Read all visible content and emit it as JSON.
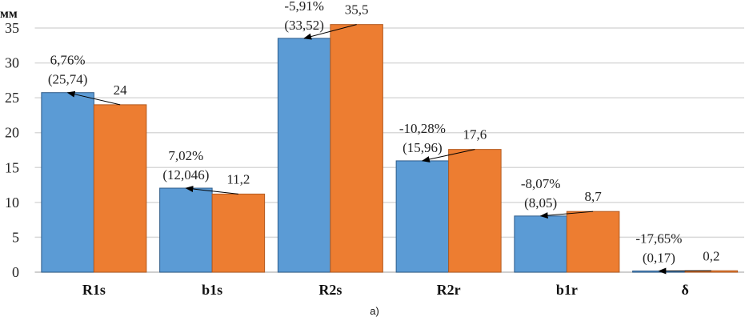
{
  "chart_data": {
    "type": "bar",
    "ylabel": "мм",
    "caption": "a)",
    "categories": [
      "R1s",
      "b1s",
      "R2s",
      "R2r",
      "b1r",
      "δ"
    ],
    "ylim": [
      0,
      35
    ],
    "yticks": [
      0,
      5,
      10,
      15,
      20,
      25,
      30,
      35
    ],
    "grid": true,
    "series": [
      {
        "values": [
          25.74,
          12.046,
          33.52,
          15.96,
          8.05,
          0.17
        ],
        "labels": [
          "(25,74)",
          "(12,046)",
          "(33,52)",
          "(15,96)",
          "(8,05)",
          "(0,17)"
        ],
        "color": "#5B9BD5"
      },
      {
        "values": [
          24,
          11.2,
          35.5,
          17.6,
          8.7,
          0.2
        ],
        "labels": [
          "24",
          "11,2",
          "35,5",
          "17,6",
          "8,7",
          "0,2"
        ],
        "color": "#ED7D31"
      }
    ],
    "annotations": [
      "6,76%",
      "7,02%",
      "-5,91%",
      "-10,28%",
      "-8,07%",
      "-17,65%"
    ]
  }
}
